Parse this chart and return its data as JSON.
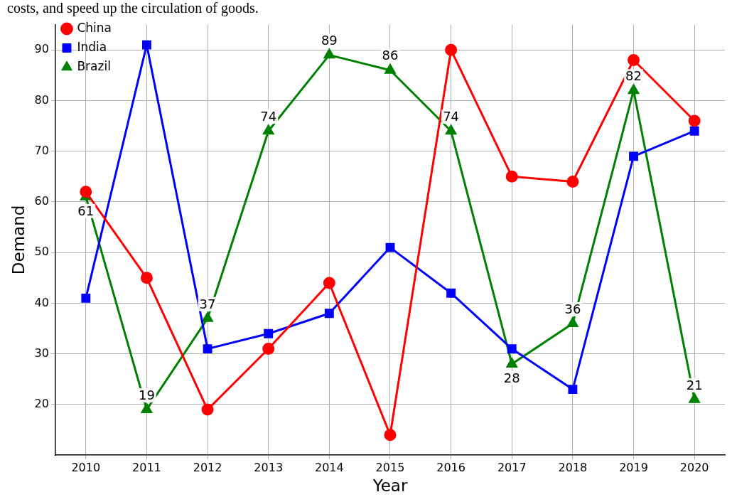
{
  "chart_data": {
    "type": "line",
    "annotations": [
      "costs, and speed up the circulation of goods."
    ],
    "xlabel": "Year",
    "ylabel": "Demand",
    "categories": [
      "2010",
      "2011",
      "2012",
      "2013",
      "2014",
      "2015",
      "2016",
      "2017",
      "2018",
      "2019",
      "2020"
    ],
    "series": [
      {
        "name": "China",
        "color": "#ff0000",
        "marker": "circle",
        "values": [
          62,
          45,
          19,
          31,
          44,
          14,
          90,
          65,
          64,
          88,
          76
        ]
      },
      {
        "name": "India",
        "color": "#0000ff",
        "marker": "square",
        "values": [
          41,
          91,
          31,
          34,
          38,
          51,
          42,
          31,
          23,
          69,
          74
        ]
      },
      {
        "name": "Brazil",
        "color": "#008000",
        "marker": "triangle",
        "values": [
          61,
          19,
          37,
          74,
          89,
          86,
          74,
          28,
          36,
          82,
          21
        ],
        "value_labels": [
          "61",
          "19",
          "37",
          "74",
          "89",
          "86",
          "74",
          "28",
          "36",
          "82",
          "21"
        ]
      }
    ],
    "ylim": [
      10,
      95
    ],
    "yticks": [
      20,
      30,
      40,
      50,
      60,
      70,
      80,
      90
    ],
    "grid": true,
    "legend": "top left",
    "line_style": "solid"
  }
}
